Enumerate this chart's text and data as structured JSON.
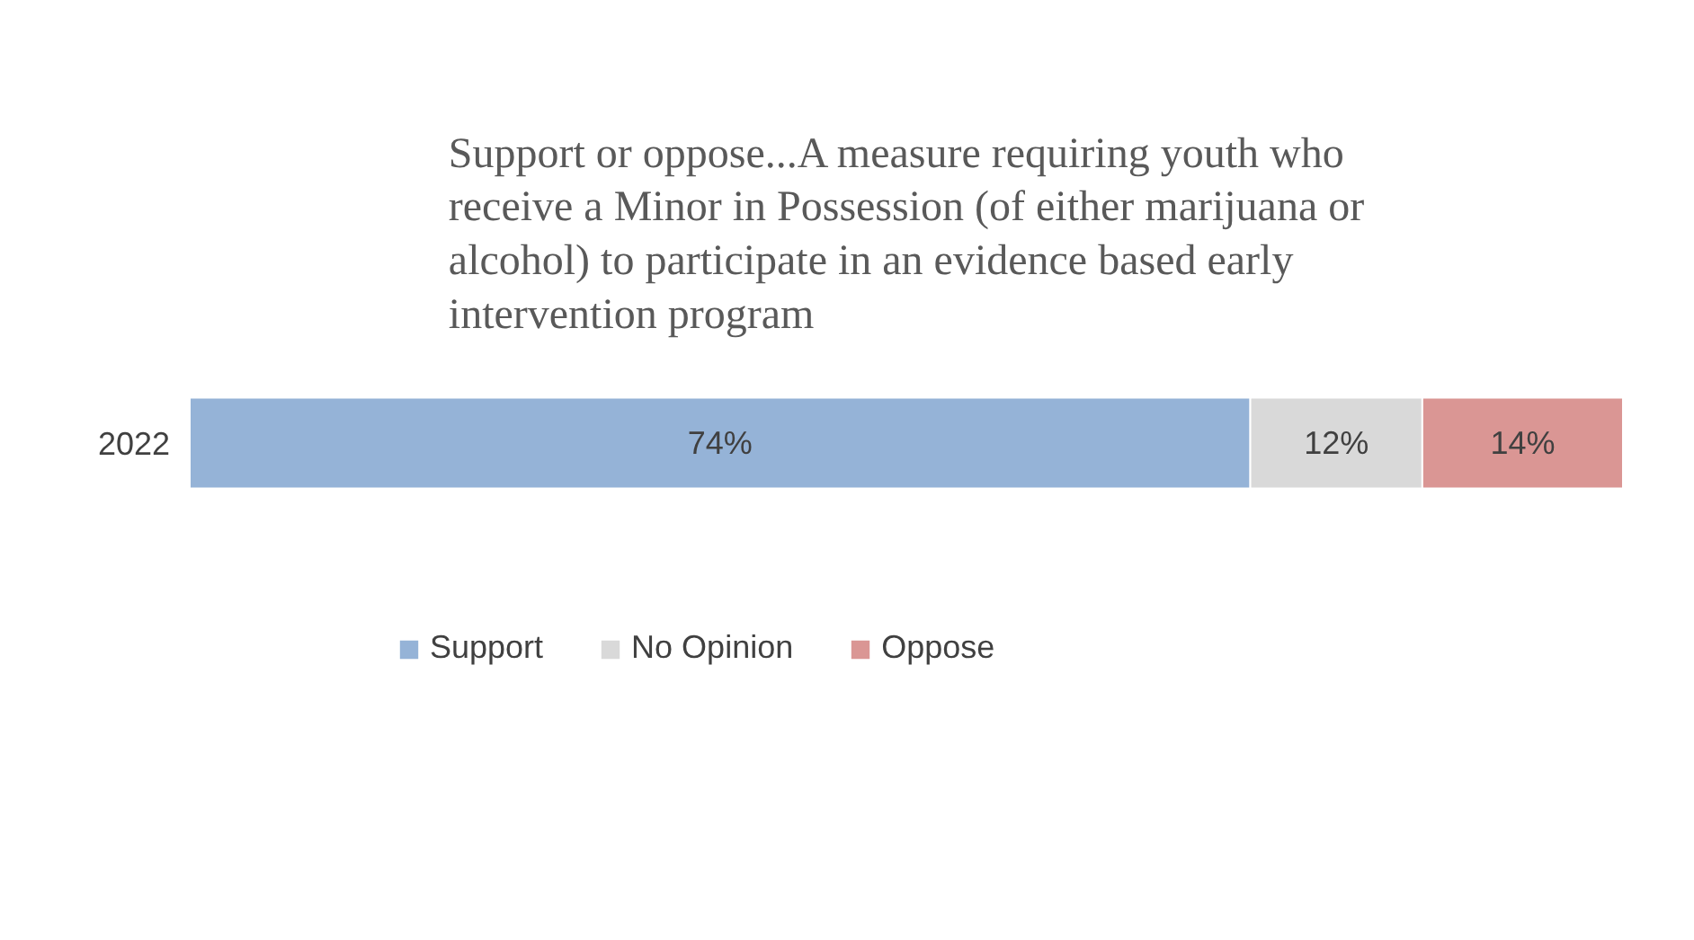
{
  "chart_data": {
    "type": "bar",
    "orientation": "horizontal",
    "stacked": true,
    "title": "Support or oppose...A measure requiring youth who receive a Minor in Possession (of either marijuana or alcohol) to participate in an evidence based early intervention program",
    "categories": [
      "2022"
    ],
    "series": [
      {
        "name": "Support",
        "color": "#95b3d7",
        "values": [
          74
        ],
        "value_labels": [
          "74%"
        ]
      },
      {
        "name": "No Opinion",
        "color": "#d9d9d9",
        "values": [
          12
        ],
        "value_labels": [
          "12%"
        ]
      },
      {
        "name": "Oppose",
        "color": "#da9694",
        "values": [
          14
        ],
        "value_labels": [
          "14%"
        ]
      }
    ],
    "xlim": [
      0,
      100
    ],
    "legend": "bottom",
    "tick_labels": "y"
  }
}
